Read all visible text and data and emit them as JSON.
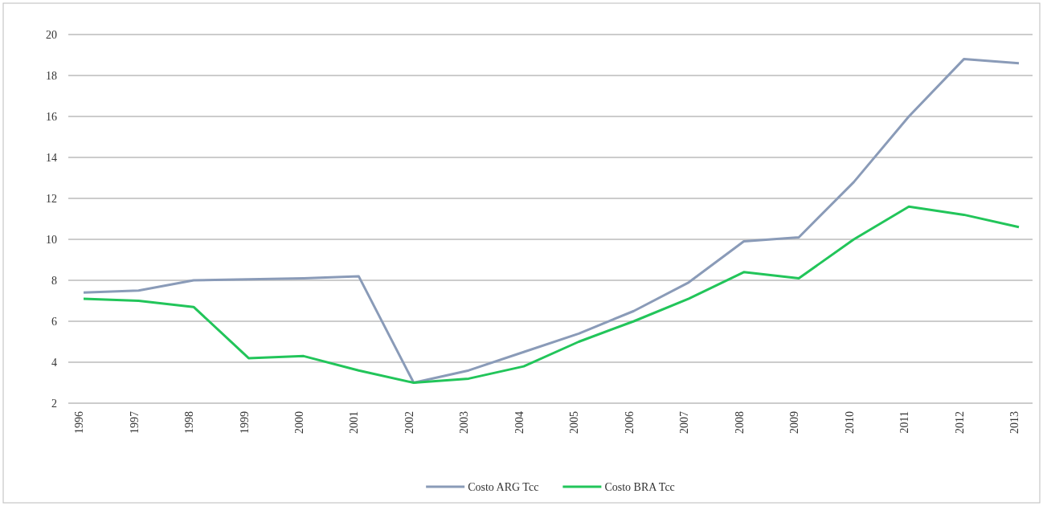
{
  "chart_data": {
    "type": "line",
    "categories": [
      "1996",
      "1997",
      "1998",
      "1999",
      "2000",
      "2001",
      "2002",
      "2003",
      "2004",
      "2005",
      "2006",
      "2007",
      "2008",
      "2009",
      "2010",
      "2011",
      "2012",
      "2013"
    ],
    "series": [
      {
        "name": "Costo ARG Tcc",
        "color": "#8a9bb8",
        "values": [
          7.4,
          7.5,
          8.0,
          8.05,
          8.1,
          8.2,
          3.0,
          3.6,
          4.5,
          5.4,
          6.5,
          7.9,
          9.9,
          10.1,
          12.8,
          16.0,
          18.8,
          18.6
        ]
      },
      {
        "name": "Costo BRA Tcc",
        "color": "#22c55a",
        "values": [
          7.1,
          7.0,
          6.7,
          4.2,
          4.3,
          3.6,
          3.0,
          3.2,
          3.8,
          5.0,
          6.0,
          7.1,
          8.4,
          8.1,
          10.0,
          11.6,
          11.2,
          10.6
        ]
      }
    ],
    "ylim": [
      2,
      20
    ],
    "yticks": [
      2,
      4,
      6,
      8,
      10,
      12,
      14,
      16,
      18,
      20
    ],
    "grid": "y",
    "legend": "bottom",
    "marker": "none",
    "line_style": "solid"
  }
}
